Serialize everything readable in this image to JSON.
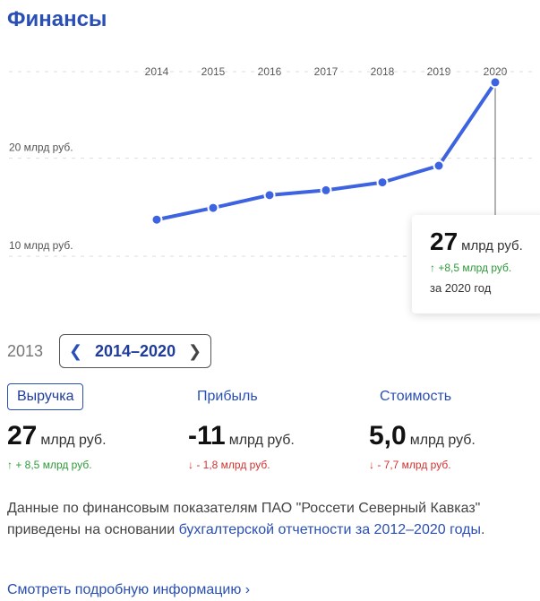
{
  "header": {
    "title": "Финансы"
  },
  "chart_data": {
    "type": "line",
    "x": [
      "2014",
      "2015",
      "2016",
      "2017",
      "2018",
      "2019",
      "2020"
    ],
    "values": [
      13.0,
      14.2,
      15.5,
      16.0,
      16.8,
      18.5,
      27.0
    ],
    "y_ticks": [
      {
        "value": 10,
        "label": "10 млрд руб."
      },
      {
        "value": 20,
        "label": "20 млрд руб."
      }
    ],
    "ylim": [
      8,
      29
    ],
    "highlight_index": 6,
    "line_color": "#3d63e0"
  },
  "tooltip": {
    "value": "27",
    "unit": "млрд руб.",
    "delta": "↑ +8,5 млрд руб.",
    "period": "за 2020 год"
  },
  "period": {
    "previous_year": "2013",
    "range_label": "2014–2020",
    "prev_icon": "chevron-left-icon",
    "next_icon": "chevron-right-icon"
  },
  "tabs": [
    {
      "label": "Выручка"
    },
    {
      "label": "Прибыль"
    },
    {
      "label": "Стоимость"
    }
  ],
  "metrics": [
    {
      "value": "27",
      "unit": "млрд руб.",
      "delta": "↑ + 8,5 млрд руб."
    },
    {
      "value": "-11",
      "unit": "млрд руб.",
      "delta": "↓ - 1,8 млрд руб."
    },
    {
      "value": "5,0",
      "unit": "млрд руб.",
      "delta": "↓ - 7,7 млрд руб."
    }
  ],
  "note": {
    "text": "Данные по финансовым показателям ПАО \"Россети Северный Кавказ\" приведены на основании ",
    "link": "бухгалтерской отчетности за 2012–2020 годы",
    "suffix": "."
  },
  "more_link": "Смотреть подробную информацию  ›",
  "colors": {
    "accent": "#2a4fb4",
    "positive": "#2e9a3a",
    "negative": "#d3322f"
  }
}
